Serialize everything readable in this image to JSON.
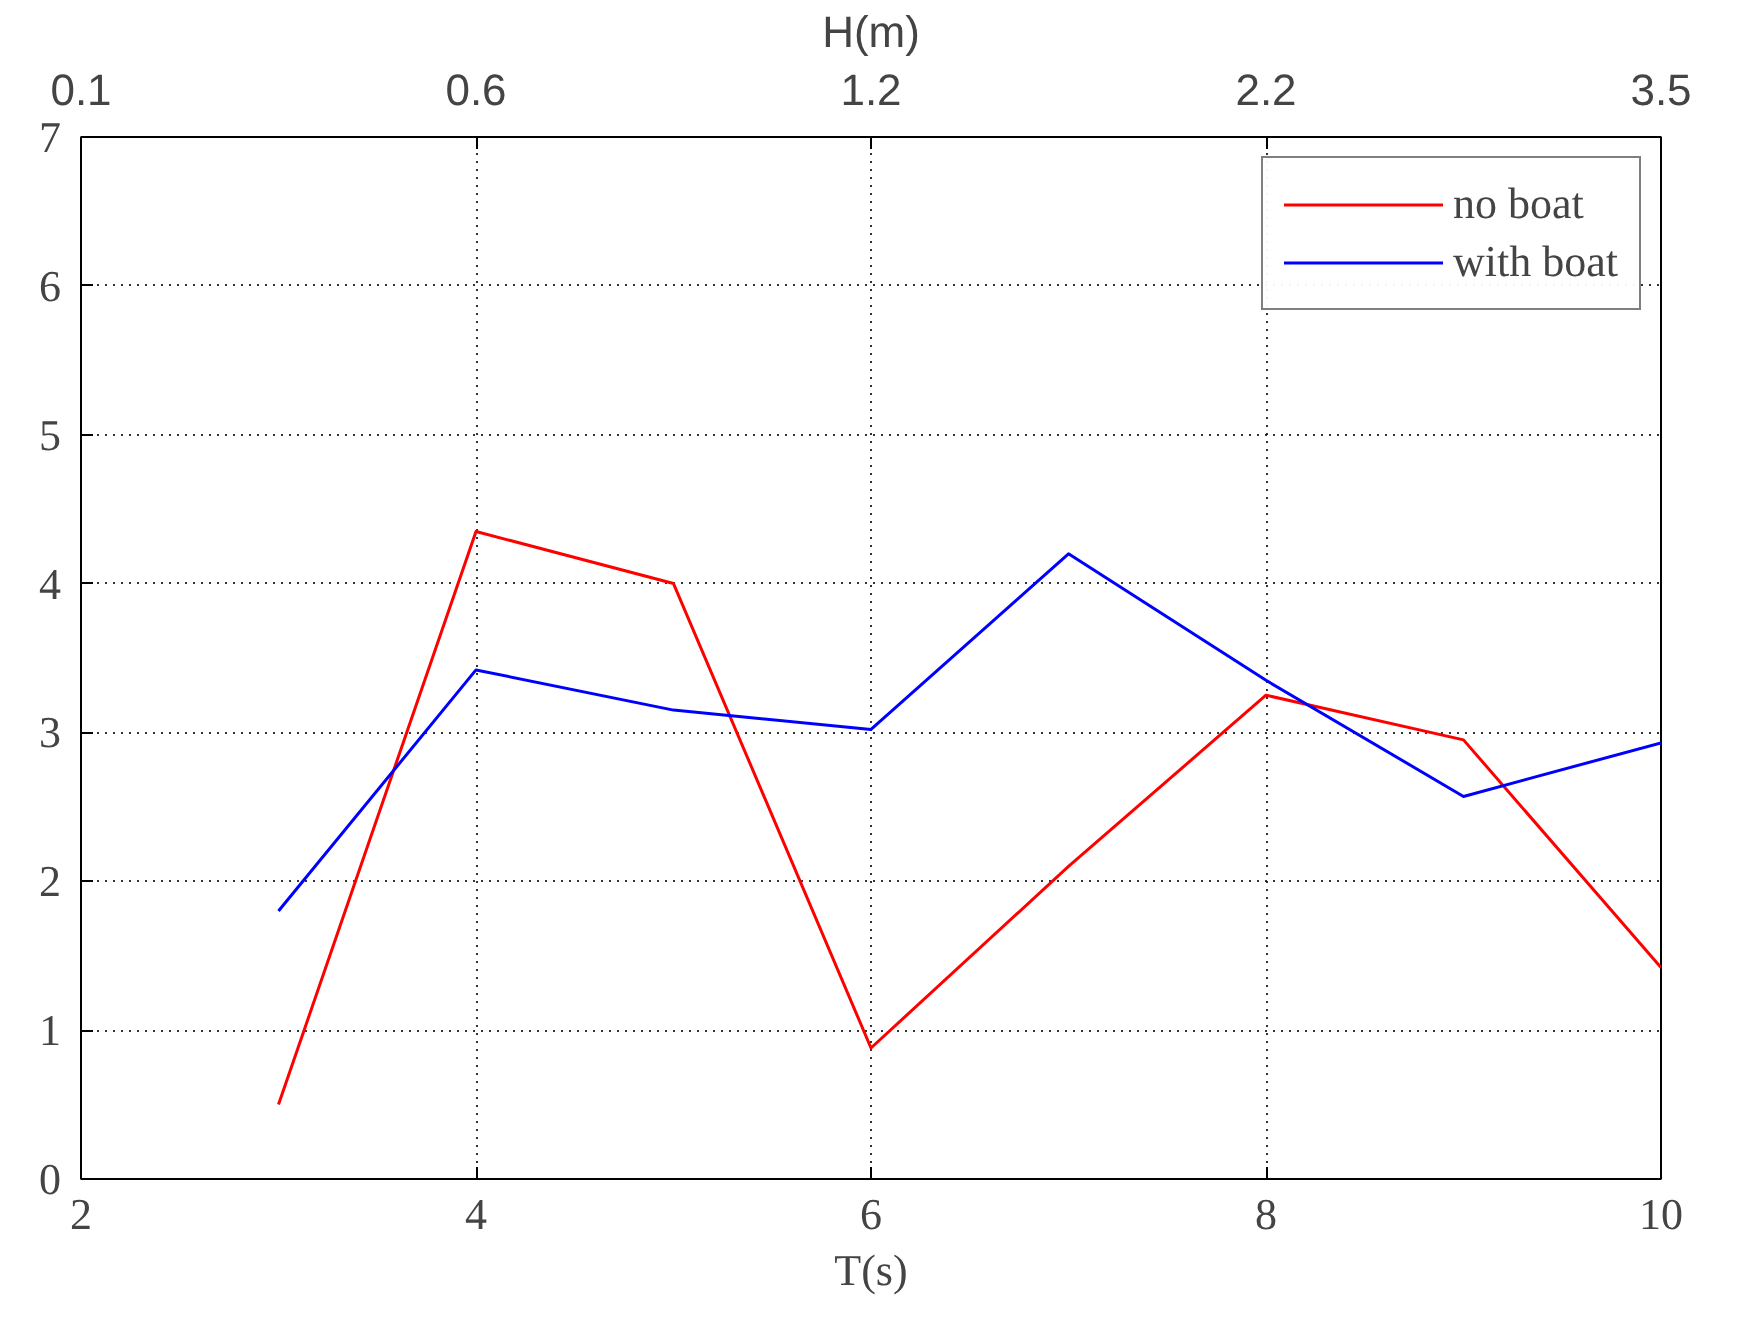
{
  "chart_data": {
    "type": "line",
    "xlabel": "T(s)",
    "x2label": "H(m)",
    "x": [
      3,
      4,
      5,
      6,
      7,
      8,
      9,
      10
    ],
    "series": [
      {
        "name": "no boat",
        "color": "#ff0000",
        "values": [
          0.5,
          4.35,
          4.0,
          0.88,
          2.1,
          3.25,
          2.95,
          1.42
        ]
      },
      {
        "name": "with boat",
        "color": "#0000ff",
        "values": [
          1.8,
          3.42,
          3.15,
          3.02,
          4.2,
          3.35,
          2.57,
          2.93
        ]
      }
    ],
    "xlim": [
      2,
      10
    ],
    "xticks": [
      2,
      4,
      6,
      8,
      10
    ],
    "annotations": [
      "0.1",
      "0.6",
      "1.2",
      "2.2",
      "3.5"
    ],
    "ylim": [
      0,
      7
    ],
    "yticks": [
      0,
      1,
      2,
      3,
      4,
      5,
      6,
      7
    ],
    "grid": true,
    "legend": "top right",
    "marker": "none",
    "line_style": "solid"
  }
}
